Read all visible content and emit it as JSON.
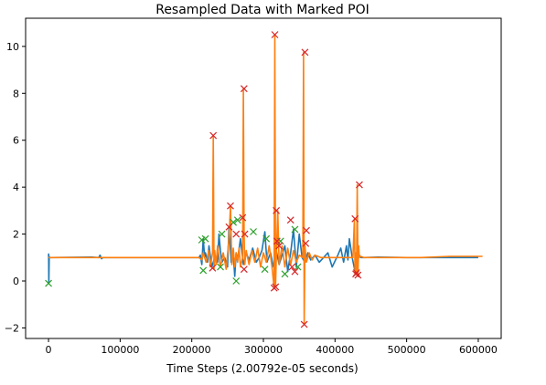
{
  "chart_data": {
    "type": "line",
    "title": "Resampled Data with Marked POI",
    "xlabel": "Time Steps (2.00792e-05 seconds)",
    "ylabel": "",
    "xlim": [
      -32000,
      632000
    ],
    "ylim": [
      -2.45,
      11.2
    ],
    "xticks": [
      0,
      100000,
      200000,
      300000,
      400000,
      500000,
      600000
    ],
    "yticks": [
      -2,
      0,
      2,
      4,
      6,
      8,
      10
    ],
    "grid": false,
    "colors": {
      "series_blue": "#1f77b4",
      "series_orange": "#ff7f0e",
      "marker_red": "#d62728",
      "marker_green": "#2ca02c"
    },
    "series": [
      {
        "color": "#1f77b4",
        "x": [
          0,
          200,
          400,
          1000,
          1200,
          3000,
          60000,
          70000,
          72000,
          74000,
          76000,
          120000,
          170000,
          195000,
          210000,
          212000,
          214000,
          216000,
          218000,
          219000,
          222000,
          224000,
          228000,
          232000,
          236000,
          238000,
          240000,
          242000,
          246000,
          250000,
          252000,
          255000,
          258000,
          260000,
          262000,
          264000,
          268000,
          272000,
          276000,
          280000,
          285000,
          290000,
          294000,
          298000,
          302000,
          305000,
          310000,
          314000,
          318000,
          322000,
          326000,
          330000,
          334000,
          338000,
          342000,
          346000,
          350000,
          354000,
          358000,
          362000,
          366000,
          372000,
          378000,
          384000,
          390000,
          396000,
          404000,
          408000,
          412000,
          416000,
          418000,
          420000,
          424000,
          428000,
          432000,
          436000,
          440000,
          460000,
          500000,
          540000,
          580000,
          600000
        ],
        "y": [
          1.05,
          1.15,
          -0.1,
          1.05,
          1.0,
          1.0,
          1.02,
          1.0,
          1.1,
          0.95,
          1.0,
          1.0,
          1.0,
          1.0,
          1.0,
          1.1,
          0.7,
          1.8,
          1.0,
          1.2,
          0.8,
          1.5,
          0.6,
          1.0,
          0.8,
          2.0,
          1.3,
          0.8,
          1.0,
          0.6,
          2.3,
          0.8,
          1.1,
          0.2,
          1.2,
          0.9,
          1.8,
          0.7,
          1.2,
          0.9,
          1.4,
          0.8,
          1.0,
          1.3,
          2.1,
          0.8,
          1.2,
          0.6,
          1.3,
          0.7,
          1.1,
          1.5,
          0.4,
          1.2,
          2.2,
          0.6,
          2.0,
          1.0,
          0.8,
          1.2,
          0.9,
          1.1,
          0.8,
          1.0,
          1.2,
          0.6,
          1.1,
          1.4,
          0.8,
          1.5,
          0.9,
          1.8,
          1.0,
          0.4,
          1.2,
          1.0,
          1.0,
          1.02,
          1.0,
          1.0,
          1.0,
          1.0
        ]
      },
      {
        "color": "#ff7f0e",
        "x": [
          0,
          60000,
          120000,
          180000,
          200000,
          210000,
          214000,
          216000,
          220000,
          224000,
          226000,
          228000,
          229000,
          230000,
          231000,
          232000,
          234000,
          236000,
          240000,
          244000,
          248000,
          252000,
          254000,
          256000,
          258000,
          260000,
          262000,
          264000,
          266000,
          268000,
          271000,
          272000,
          273000,
          274000,
          276000,
          280000,
          284000,
          288000,
          292000,
          296000,
          300000,
          304000,
          308000,
          312000,
          315000,
          316000,
          317000,
          318000,
          320000,
          322000,
          326000,
          330000,
          334000,
          338000,
          342000,
          346000,
          350000,
          355000,
          356000,
          357000,
          358000,
          360000,
          364000,
          368000,
          372000,
          380000,
          390000,
          400000,
          410000,
          420000,
          425000,
          427000,
          428000,
          429000,
          430000,
          431000,
          432000,
          433000,
          434000,
          436000,
          440000,
          480000,
          520000,
          560000,
          606000
        ],
        "y": [
          1.0,
          1.0,
          1.0,
          1.0,
          1.0,
          1.0,
          0.9,
          1.2,
          0.8,
          1.3,
          0.6,
          1.0,
          1.2,
          6.2,
          0.5,
          1.3,
          0.7,
          1.5,
          0.6,
          1.2,
          0.5,
          1.8,
          3.2,
          0.7,
          1.4,
          0.6,
          1.2,
          0.8,
          1.4,
          0.6,
          1.0,
          8.2,
          2.0,
          0.7,
          1.3,
          0.7,
          1.3,
          0.8,
          1.4,
          0.6,
          1.2,
          0.8,
          1.5,
          0.6,
          -0.3,
          10.5,
          -0.2,
          1.0,
          3.0,
          0.7,
          1.5,
          0.6,
          1.4,
          0.7,
          1.3,
          0.8,
          1.1,
          1.0,
          9.75,
          -1.85,
          1.5,
          0.8,
          1.2,
          0.9,
          1.1,
          1.0,
          1.0,
          1.0,
          1.0,
          1.0,
          1.0,
          2.65,
          0.3,
          1.2,
          0.3,
          4.1,
          0.25,
          1.5,
          1.0,
          1.05,
          1.0,
          1.0,
          1.0,
          1.05,
          1.05
        ]
      }
    ],
    "poi_red": {
      "color": "#d62728",
      "marker": "x",
      "x": [
        230000,
        229000,
        254000,
        252000,
        262000,
        271000,
        273000,
        274000,
        273000,
        316000,
        315000,
        317000,
        318000,
        319000,
        322000,
        338000,
        340000,
        344000,
        358000,
        357000,
        360000,
        359000,
        428000,
        429000,
        430000,
        432000,
        434000
      ],
      "y": [
        6.2,
        0.55,
        3.2,
        2.3,
        2.0,
        2.7,
        8.2,
        2.0,
        0.5,
        10.5,
        -0.3,
        -0.25,
        3.0,
        1.7,
        1.5,
        2.6,
        0.6,
        0.4,
        9.75,
        -1.85,
        2.15,
        1.6,
        2.65,
        0.3,
        0.35,
        0.25,
        4.1
      ]
    },
    "poi_green": {
      "color": "#2ca02c",
      "marker": "x",
      "x": [
        0,
        214000,
        216000,
        219000,
        240000,
        242000,
        258000,
        262000,
        264000,
        286000,
        302000,
        304000,
        324000,
        330000,
        344000,
        348000
      ],
      "y": [
        -0.1,
        1.75,
        0.45,
        1.8,
        0.6,
        2.0,
        2.5,
        0.0,
        2.6,
        2.1,
        0.5,
        1.8,
        1.7,
        0.3,
        2.2,
        0.6
      ]
    }
  }
}
